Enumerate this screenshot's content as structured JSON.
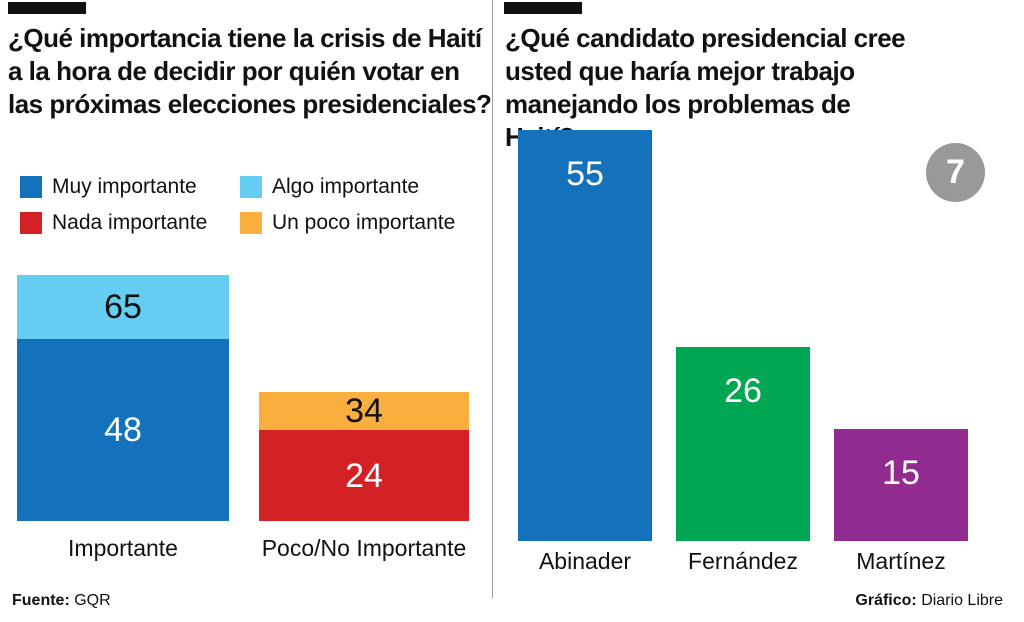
{
  "left_title": "¿Qué importancia tiene la crisis de Haití a la hora de decidir por quién votar en las próximas elecciones presidenciales?",
  "right_title": "¿Qué candidato presidencial cree usted que haría mejor trabajo manejando los problemas de Haití?",
  "page_number": "7",
  "footer": {
    "source_label": "Fuente:",
    "source": "GQR",
    "credit_label": "Gráfico:",
    "credit": "Diario Libre"
  },
  "chart_data": [
    {
      "type": "bar",
      "stacked": true,
      "title": "¿Qué importancia tiene la crisis de Haití a la hora de decidir por quién votar en las próximas elecciones presidenciales?",
      "legend": [
        {
          "label": "Muy importante",
          "color": "#1472bc"
        },
        {
          "label": "Algo importante",
          "color": "#66cdf2"
        },
        {
          "label": "Nada importante",
          "color": "#d42126"
        },
        {
          "label": "Un poco importante",
          "color": "#f9ae3d"
        }
      ],
      "categories": [
        "Importante",
        "Poco/No Importante"
      ],
      "bars": [
        {
          "category": "Importante",
          "lower": {
            "series": "Muy importante",
            "value": 48,
            "color": "#1472bc",
            "label_color": "#ffffff"
          },
          "total": {
            "series": "Algo importante",
            "value": 65,
            "color": "#66cdf2",
            "label_color": "#111111"
          }
        },
        {
          "category": "Poco/No Importante",
          "lower": {
            "series": "Nada importante",
            "value": 24,
            "color": "#d42126",
            "label_color": "#ffffff"
          },
          "total": {
            "series": "Un poco importante",
            "value": 34,
            "color": "#f9ae3d",
            "label_color": "#111111"
          }
        }
      ],
      "ylim": [
        0,
        65
      ]
    },
    {
      "type": "bar",
      "title": "¿Qué candidato presidencial cree usted que haría mejor trabajo manejando los problemas de Haití?",
      "categories": [
        "Abinader",
        "Fernández",
        "Martínez"
      ],
      "values": [
        55,
        26,
        15
      ],
      "colors": [
        "#1472bc",
        "#00a651",
        "#922b8f"
      ],
      "ylim": [
        0,
        55
      ]
    }
  ]
}
